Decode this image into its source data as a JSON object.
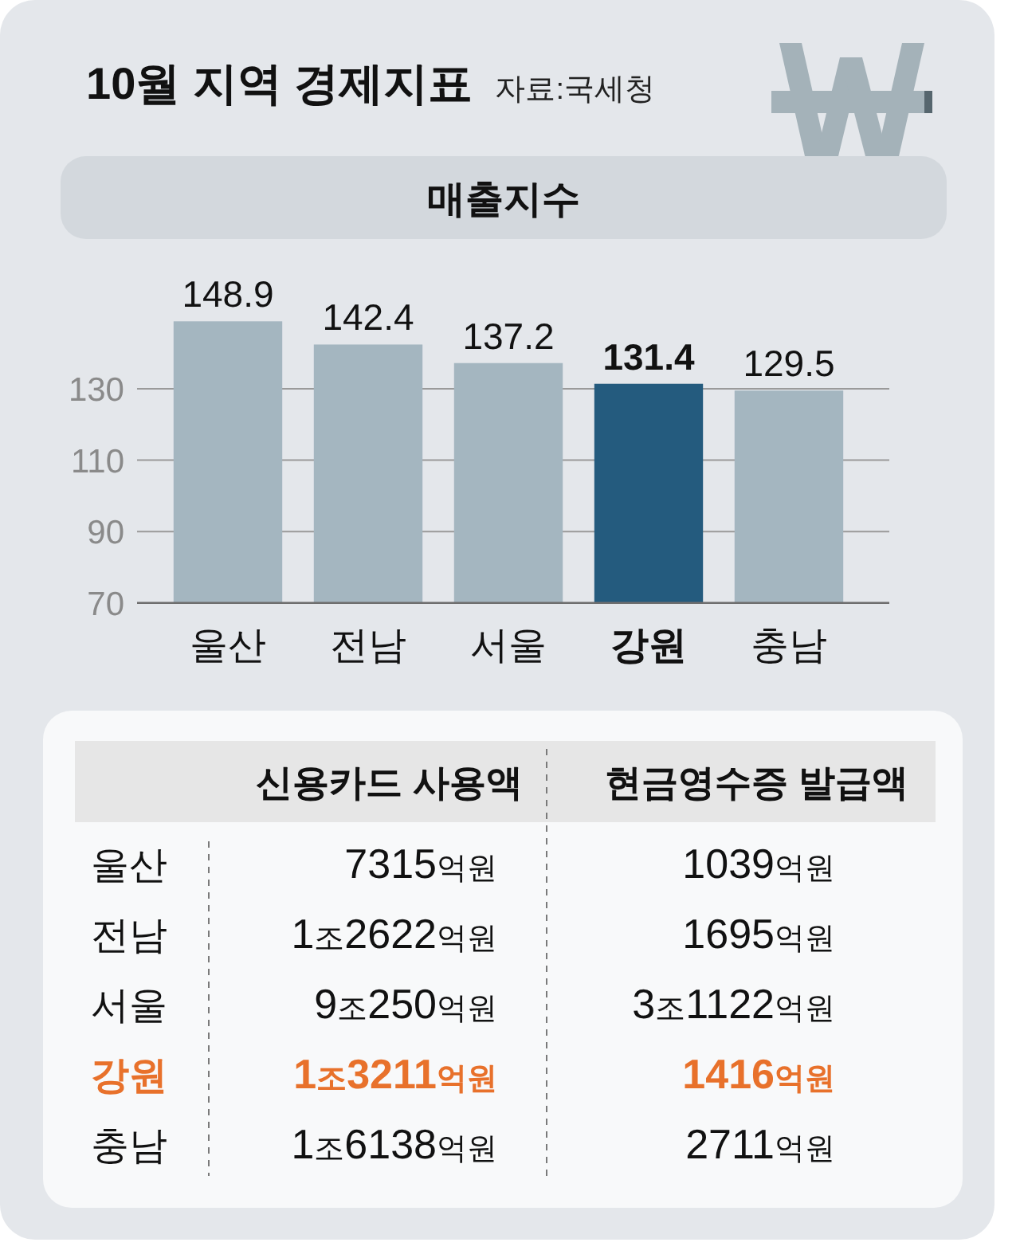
{
  "chart_data": [
    {
      "type": "bar",
      "title": "10월 지역 경제지표",
      "subtitle": "매출지수",
      "annotations": [
        "자료:국세청"
      ],
      "categories": [
        "울산",
        "전남",
        "서울",
        "강원",
        "충남"
      ],
      "values": [
        148.9,
        142.4,
        137.2,
        131.4,
        129.5
      ],
      "colors": [
        "#a4b6c0",
        "#a4b6c0",
        "#a4b6c0",
        "#245b7e",
        "#a4b6c0"
      ],
      "ylim": [
        70,
        150
      ],
      "yticks": [
        70,
        90,
        110,
        130
      ],
      "grid": "y",
      "data_labels": true
    },
    {
      "type": "other",
      "categories": [
        "신용카드 사용액",
        "현금영수증 발급액"
      ],
      "y_categories": [
        "울산",
        "전남",
        "서울",
        "강원",
        "충남"
      ],
      "cell_labels": [
        [
          "7315억원",
          "1039억원"
        ],
        [
          "1조2622억원",
          "1695억원"
        ],
        [
          "9조250억원",
          "3조1122억원"
        ],
        [
          "1조3211억원",
          "1416억원"
        ],
        [
          "1조6138억원",
          "2711억원"
        ]
      ]
    }
  ]
}
